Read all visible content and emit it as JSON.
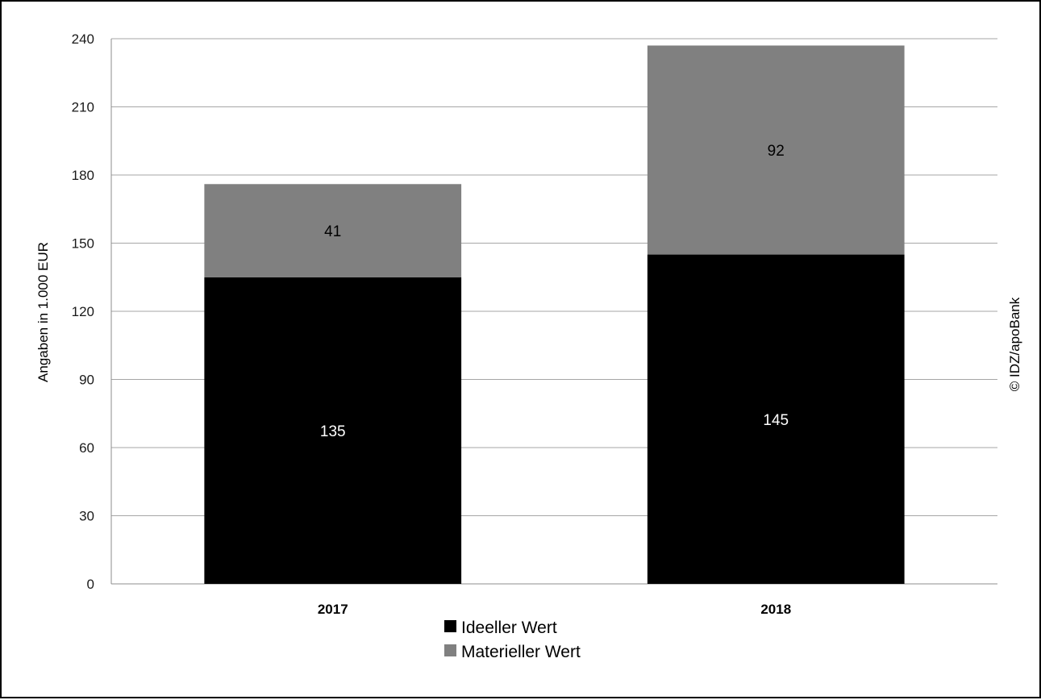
{
  "chart_data": {
    "type": "bar",
    "stacked": true,
    "categories": [
      "2017",
      "2018"
    ],
    "series": [
      {
        "name": "Ideeller Wert",
        "values": [
          135,
          145
        ],
        "color": "#000000",
        "label_color": "#ffffff"
      },
      {
        "name": "Materieller Wert",
        "values": [
          41,
          92
        ],
        "color": "#808080",
        "label_color": "#000000"
      }
    ],
    "ylabel": "Angaben in 1.000 EUR",
    "ylim": [
      0,
      240
    ],
    "yticks": [
      0,
      30,
      60,
      90,
      120,
      150,
      180,
      210,
      240
    ],
    "grid": true,
    "legend_position": "bottom",
    "credit": "© IDZ/apoBank"
  }
}
